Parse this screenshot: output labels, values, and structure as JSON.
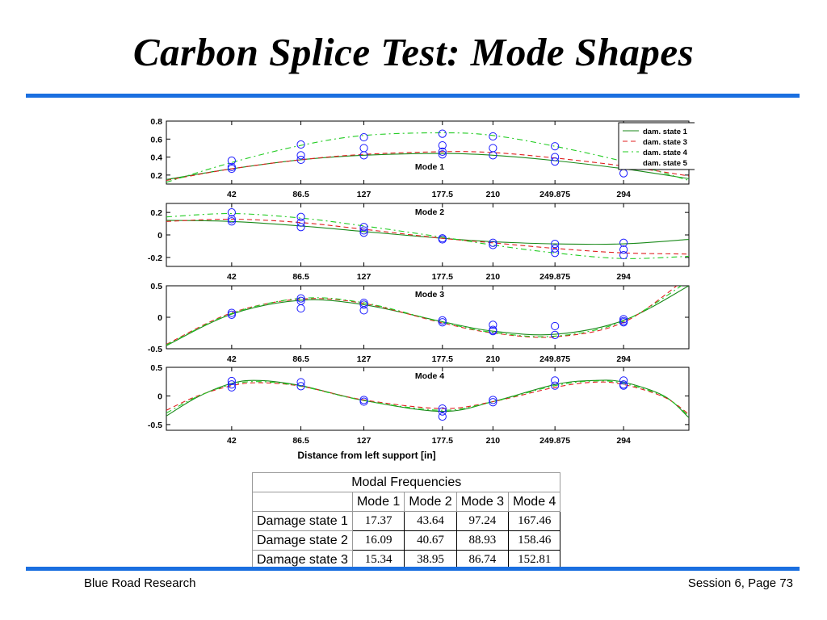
{
  "title": "Carbon Splice Test: Mode Shapes",
  "colors": {
    "rule": "#1a6fe0",
    "state1": "#1a8a1a",
    "state3": "#e02020",
    "state4": "#22cc22",
    "state5": "#ffffff",
    "markers": "#1a1aff"
  },
  "chart_data": {
    "type": "line",
    "xlabel": "Distance from left support [in]",
    "x_tick_labels": [
      "42",
      "86.5",
      "127",
      "177.5",
      "210",
      "249.875",
      "294"
    ],
    "x_ticks": [
      42,
      86.5,
      127,
      177.5,
      210,
      249.875,
      294
    ],
    "xlim": [
      0,
      336
    ],
    "legend": {
      "placement": "top-right",
      "entries": [
        "dam. state 1",
        "dam. state 3",
        "dam. state 4",
        "dam. state 5"
      ]
    },
    "panels": [
      {
        "title": "Mode 1",
        "ylim": [
          0.1,
          0.8
        ],
        "y_tick_labels": [
          "0.8",
          "0.6",
          "0.4",
          "0.2"
        ],
        "y_ticks": [
          0.8,
          0.6,
          0.4,
          0.2
        ],
        "series": [
          {
            "name": "dam. state 1",
            "style": "solid",
            "x": [
              0,
              42,
              86.5,
              127,
              177.5,
              210,
              249.875,
              294,
              336
            ],
            "y": [
              0.15,
              0.27,
              0.37,
              0.42,
              0.44,
              0.42,
              0.36,
              0.27,
              0.16
            ]
          },
          {
            "name": "dam. state 3",
            "style": "dashed",
            "x": [
              0,
              42,
              86.5,
              127,
              177.5,
              210,
              249.875,
              294,
              336
            ],
            "y": [
              0.14,
              0.27,
              0.37,
              0.43,
              0.46,
              0.45,
              0.39,
              0.3,
              0.19
            ]
          },
          {
            "name": "dam. state 4",
            "style": "dashdot",
            "x": [
              0,
              42,
              86.5,
              127,
              177.5,
              210,
              249.875,
              294,
              336
            ],
            "y": [
              0.12,
              0.34,
              0.53,
              0.64,
              0.67,
              0.64,
              0.52,
              0.35,
              0.14
            ]
          }
        ],
        "markers": {
          "x": [
            42,
            42,
            42,
            86.5,
            86.5,
            86.5,
            127,
            127,
            127,
            177.5,
            177.5,
            177.5,
            177.5,
            210,
            210,
            210,
            249.875,
            249.875,
            249.875,
            294
          ],
          "y": [
            0.36,
            0.29,
            0.27,
            0.54,
            0.42,
            0.37,
            0.62,
            0.5,
            0.42,
            0.66,
            0.53,
            0.46,
            0.43,
            0.63,
            0.5,
            0.42,
            0.52,
            0.4,
            0.35,
            0.22
          ]
        }
      },
      {
        "title": "Mode 2",
        "ylim": [
          -0.28,
          0.28
        ],
        "y_tick_labels": [
          "0.2",
          "0",
          "-0.2"
        ],
        "y_ticks": [
          0.2,
          0,
          -0.2
        ],
        "series": [
          {
            "name": "dam. state 1",
            "style": "solid",
            "x": [
              0,
              42,
              86.5,
              127,
              177.5,
              210,
              249.875,
              294,
              336
            ],
            "y": [
              0.13,
              0.12,
              0.08,
              0.03,
              -0.03,
              -0.06,
              -0.08,
              -0.08,
              -0.04
            ]
          },
          {
            "name": "dam. state 3",
            "style": "dashed",
            "x": [
              0,
              42,
              86.5,
              127,
              177.5,
              210,
              249.875,
              294,
              336
            ],
            "y": [
              0.12,
              0.14,
              0.11,
              0.05,
              -0.03,
              -0.07,
              -0.12,
              -0.16,
              -0.17
            ]
          },
          {
            "name": "dam. state 4",
            "style": "dashdot",
            "x": [
              0,
              42,
              86.5,
              127,
              177.5,
              210,
              249.875,
              294,
              336
            ],
            "y": [
              0.16,
              0.19,
              0.15,
              0.08,
              -0.02,
              -0.09,
              -0.16,
              -0.21,
              -0.19
            ]
          }
        ],
        "markers": {
          "x": [
            42,
            42,
            42,
            86.5,
            86.5,
            86.5,
            127,
            127,
            127,
            177.5,
            177.5,
            210,
            210,
            249.875,
            249.875,
            249.875,
            294,
            294,
            294
          ],
          "y": [
            0.2,
            0.14,
            0.12,
            0.16,
            0.11,
            0.07,
            0.07,
            0.04,
            0.02,
            -0.03,
            -0.04,
            -0.07,
            -0.09,
            -0.08,
            -0.12,
            -0.16,
            -0.07,
            -0.13,
            -0.18
          ]
        }
      },
      {
        "title": "Mode 3",
        "ylim": [
          -0.5,
          0.5
        ],
        "y_tick_labels": [
          "0.5",
          "0",
          "-0.5"
        ],
        "y_ticks": [
          0.5,
          0,
          -0.5
        ],
        "series": [
          {
            "name": "dam. state 1",
            "style": "solid",
            "x": [
              0,
              42,
              86.5,
              127,
              177.5,
              210,
              249.875,
              294,
              336
            ],
            "y": [
              -0.45,
              0.05,
              0.27,
              0.2,
              -0.07,
              -0.22,
              -0.27,
              -0.05,
              0.5
            ]
          },
          {
            "name": "dam. state 3",
            "style": "dashed",
            "x": [
              0,
              42,
              86.5,
              127,
              177.5,
              210,
              249.875,
              294,
              336
            ],
            "y": [
              -0.43,
              0.07,
              0.29,
              0.22,
              -0.09,
              -0.25,
              -0.31,
              -0.08,
              0.65
            ]
          },
          {
            "name": "dam. state 4",
            "style": "dashdot",
            "x": [
              0,
              42,
              86.5,
              127,
              177.5,
              210,
              249.875,
              294,
              336
            ],
            "y": [
              -0.44,
              0.06,
              0.3,
              0.23,
              -0.08,
              -0.24,
              -0.3,
              -0.06,
              0.58
            ]
          }
        ],
        "markers": {
          "x": [
            42,
            42,
            86.5,
            86.5,
            86.5,
            127,
            127,
            127,
            177.5,
            177.5,
            210,
            210,
            210,
            249.875,
            249.875,
            294,
            294,
            294
          ],
          "y": [
            0.07,
            0.04,
            0.3,
            0.26,
            0.14,
            0.23,
            0.2,
            0.11,
            -0.05,
            -0.08,
            -0.12,
            -0.2,
            -0.22,
            -0.14,
            -0.28,
            -0.03,
            -0.06,
            -0.08
          ]
        }
      },
      {
        "title": "Mode 4",
        "ylim": [
          -0.6,
          0.5
        ],
        "y_tick_labels": [
          "0.5",
          "0",
          "-0.5"
        ],
        "y_ticks": [
          0.5,
          0,
          -0.5
        ],
        "series": [
          {
            "name": "dam. state 1",
            "style": "solid",
            "x": [
              0,
              20,
              42,
              60,
              86.5,
              127,
              177.5,
              210,
              249.875,
              275,
              294,
              320,
              336
            ],
            "y": [
              -0.35,
              -0.02,
              0.22,
              0.27,
              0.18,
              -0.08,
              -0.27,
              -0.1,
              0.2,
              0.27,
              0.24,
              0.0,
              -0.38
            ]
          },
          {
            "name": "dam. state 3",
            "style": "dashed",
            "x": [
              0,
              20,
              42,
              60,
              86.5,
              127,
              177.5,
              210,
              249.875,
              275,
              294,
              320,
              336
            ],
            "y": [
              -0.25,
              0.0,
              0.18,
              0.23,
              0.17,
              -0.07,
              -0.22,
              -0.1,
              0.15,
              0.24,
              0.2,
              -0.02,
              -0.32
            ]
          },
          {
            "name": "dam. state 4",
            "style": "dashdot",
            "x": [
              0,
              20,
              42,
              60,
              86.5,
              127,
              177.5,
              210,
              249.875,
              275,
              294,
              320,
              336
            ],
            "y": [
              -0.3,
              -0.01,
              0.2,
              0.25,
              0.17,
              -0.08,
              -0.25,
              -0.1,
              0.18,
              0.26,
              0.22,
              -0.01,
              -0.35
            ]
          }
        ],
        "markers": {
          "x": [
            42,
            42,
            42,
            86.5,
            86.5,
            127,
            127,
            177.5,
            177.5,
            177.5,
            210,
            210,
            249.875,
            249.875,
            294,
            294,
            294
          ],
          "y": [
            0.26,
            0.2,
            0.15,
            0.24,
            0.17,
            -0.07,
            -0.1,
            -0.22,
            -0.27,
            -0.36,
            -0.07,
            -0.11,
            0.27,
            0.18,
            0.27,
            0.2,
            0.18
          ]
        }
      }
    ]
  },
  "table": {
    "caption": "Modal Frequencies",
    "columns": [
      "Mode 1",
      "Mode 2",
      "Mode 3",
      "Mode 4"
    ],
    "rows": [
      {
        "label": "Damage state 1",
        "values": [
          "17.37",
          "43.64",
          "97.24",
          "167.46"
        ]
      },
      {
        "label": "Damage state 2",
        "values": [
          "16.09",
          "40.67",
          "88.93",
          "158.46"
        ]
      },
      {
        "label": "Damage state 3",
        "values": [
          "15.34",
          "38.95",
          "86.74",
          "152.81"
        ]
      }
    ]
  },
  "footer": {
    "left": "Blue Road Research",
    "right": "Session 6, Page 73"
  }
}
